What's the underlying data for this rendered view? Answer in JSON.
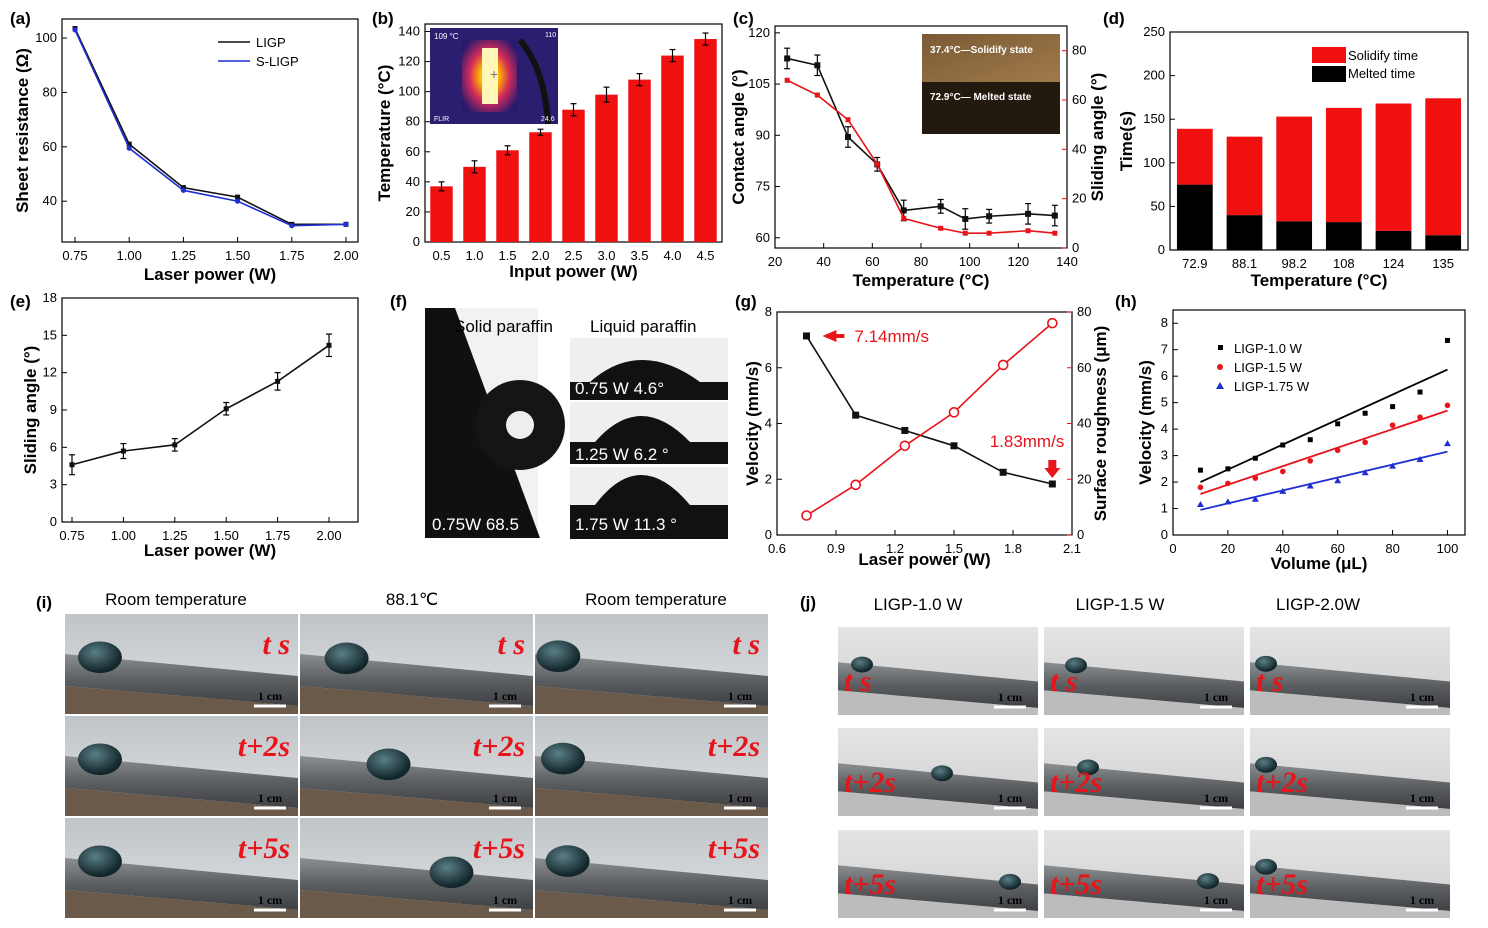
{
  "panel_labels": [
    "(a)",
    "(b)",
    "(c)",
    "(d)",
    "(e)",
    "(f)",
    "(g)",
    "(h)",
    "(i)",
    "(j)"
  ],
  "colors": {
    "black": "#111111",
    "blue": "#1f2fd0",
    "red": "#e8141a",
    "bar_red": "#f01010"
  },
  "chart_data": [
    {
      "id": "a",
      "type": "line",
      "xlabel": "Laser power (W)",
      "ylabel": "Sheet resistance (Ω)",
      "x": [
        0.75,
        1.0,
        1.25,
        1.5,
        1.75,
        2.0
      ],
      "xticks": [
        "0.75",
        "1.00",
        "1.25",
        "1.50",
        "1.75",
        "2.00"
      ],
      "ylim": [
        25,
        107
      ],
      "yticks": [
        40,
        60,
        80,
        100
      ],
      "series": [
        {
          "name": "LIGP",
          "values": [
            103.5,
            61,
            45,
            41.5,
            31.5,
            31.5
          ]
        },
        {
          "name": "S-LIGP",
          "values": [
            103,
            59.5,
            44,
            40,
            31,
            31.5
          ]
        }
      ]
    },
    {
      "id": "b",
      "type": "bar",
      "xlabel": "Input power (W)",
      "ylabel": "Temperature (°C)",
      "categories": [
        "0.5",
        "1.0",
        "1.5",
        "2.0",
        "2.5",
        "3.0",
        "3.5",
        "4.0",
        "4.5"
      ],
      "values": [
        37,
        50,
        61,
        73,
        88,
        98,
        108,
        124,
        135
      ],
      "errors": [
        3,
        4,
        3,
        2,
        4,
        5,
        4,
        4,
        4
      ],
      "ylim": [
        0,
        145
      ],
      "yticks": [
        0,
        20,
        40,
        60,
        80,
        100,
        120,
        140
      ],
      "inset_texts": {
        "temp": "109 °C",
        "max": "110",
        "min": "24.6",
        "brand": "FLIR"
      }
    },
    {
      "id": "c",
      "type": "line",
      "xlabel": "Temperature (°C)",
      "ylabel": "Contact angle (°)",
      "y2label": "Sliding angle (°)",
      "xlim": [
        20,
        140
      ],
      "xticks": [
        20,
        40,
        60,
        80,
        100,
        120,
        140
      ],
      "ylim": [
        57,
        122
      ],
      "yticks": [
        60,
        75,
        90,
        105,
        120
      ],
      "y2lim": [
        0,
        90
      ],
      "y2ticks": [
        0,
        20,
        40,
        60,
        80
      ],
      "series": [
        {
          "name": "Contact angle",
          "axis": "left",
          "x": [
            25,
            37.4,
            50,
            62,
            72.9,
            88.1,
            98.2,
            108,
            124,
            135
          ],
          "values": [
            112.5,
            110.5,
            89.5,
            81.5,
            68,
            69.2,
            65.5,
            66.3,
            67,
            66.5
          ],
          "errors": [
            3,
            3,
            3,
            2,
            3,
            2,
            3,
            2,
            3,
            3
          ]
        },
        {
          "name": "Sliding angle",
          "axis": "right",
          "x": [
            25,
            37.4,
            50,
            62,
            72.9,
            88.1,
            98.2,
            108,
            124,
            135
          ],
          "values": [
            68,
            62,
            52,
            34,
            12,
            8,
            6,
            6,
            7,
            6
          ]
        }
      ],
      "inset_texts": {
        "top": "37.4°C—Solidify state",
        "bottom": "72.9°C— Melted state"
      }
    },
    {
      "id": "d",
      "type": "bar",
      "xlabel": "Temperature (°C)",
      "ylabel": "Time(s)",
      "categories": [
        "72.9",
        "88.1",
        "98.2",
        "108",
        "124",
        "135"
      ],
      "ylim": [
        0,
        250
      ],
      "yticks": [
        0,
        50,
        100,
        150,
        200,
        250
      ],
      "series": [
        {
          "name": "Melted time",
          "values": [
            75,
            40,
            33,
            32,
            22,
            17
          ]
        },
        {
          "name": "Solidify time",
          "values": [
            64,
            90,
            120,
            131,
            146,
            157
          ]
        }
      ],
      "legend": [
        "Solidify time",
        "Melted time"
      ]
    },
    {
      "id": "e",
      "type": "line",
      "xlabel": "Laser power (W)",
      "ylabel": "Sliding angle (°)",
      "x": [
        0.75,
        1.0,
        1.25,
        1.5,
        1.75,
        2.0
      ],
      "xticks": [
        "0.75",
        "1.00",
        "1.25",
        "1.50",
        "1.75",
        "2.00"
      ],
      "values": [
        4.6,
        5.7,
        6.2,
        9.1,
        11.3,
        14.2
      ],
      "errors": [
        0.8,
        0.6,
        0.5,
        0.5,
        0.7,
        0.9
      ],
      "ylim": [
        0,
        18
      ],
      "yticks": [
        0,
        3,
        6,
        9,
        12,
        15,
        18
      ]
    },
    {
      "id": "g",
      "type": "line",
      "xlabel": "Laser power (W)",
      "ylabel": "Velocity (mm/s)",
      "y2label": "Surface roughness (μm)",
      "x": [
        0.75,
        1.0,
        1.25,
        1.5,
        1.75,
        2.0
      ],
      "xlim": [
        0.6,
        2.1
      ],
      "xticks": [
        "0.6",
        "0.9",
        "1.2",
        "1.5",
        "1.8",
        "2.1"
      ],
      "ylim": [
        0,
        8
      ],
      "yticks": [
        0,
        2,
        4,
        6,
        8
      ],
      "y2lim": [
        0,
        80
      ],
      "y2ticks": [
        0,
        20,
        40,
        60,
        80
      ],
      "series": [
        {
          "name": "Velocity",
          "axis": "left",
          "values": [
            7.14,
            4.3,
            3.75,
            3.2,
            2.25,
            1.83
          ]
        },
        {
          "name": "Surface roughness",
          "axis": "right",
          "values": [
            7,
            18,
            32,
            44,
            61,
            76
          ]
        }
      ],
      "annotations": [
        "7.14mm/s",
        "1.83mm/s"
      ]
    },
    {
      "id": "h",
      "type": "scatter",
      "xlabel": "Volume (μL)",
      "ylabel": "Velocity (mm/s)",
      "x": [
        10,
        20,
        30,
        40,
        50,
        60,
        70,
        80,
        90,
        100
      ],
      "xlim": [
        0,
        100
      ],
      "xticks": [
        0,
        20,
        40,
        60,
        80,
        100
      ],
      "ylim": [
        0,
        8.5
      ],
      "yticks": [
        0,
        1,
        2,
        3,
        4,
        5,
        6,
        7,
        8
      ],
      "series": [
        {
          "name": "LIGP-1.0 W",
          "values": [
            2.45,
            2.5,
            2.9,
            3.4,
            3.6,
            4.2,
            4.6,
            4.85,
            5.4,
            7.35
          ],
          "fit": [
            2.0,
            6.25
          ]
        },
        {
          "name": "LIGP-1.5 W",
          "values": [
            1.8,
            1.95,
            2.15,
            2.4,
            2.8,
            3.2,
            3.5,
            4.15,
            4.45,
            4.9
          ],
          "fit": [
            1.55,
            4.7
          ]
        },
        {
          "name": "LIGP-1.75 W",
          "values": [
            1.15,
            1.25,
            1.35,
            1.65,
            1.85,
            2.05,
            2.35,
            2.6,
            2.85,
            3.45
          ],
          "fit": [
            0.95,
            3.15
          ]
        }
      ]
    }
  ],
  "panel_f": {
    "solid": "Solid paraffin",
    "liquid": "Liquid paraffin",
    "big_label": "0.75W 68.5",
    "drops": [
      "0.75 W 4.6°",
      "1.25 W 6.2 °",
      "1.75 W 11.3 °"
    ]
  },
  "panel_i": {
    "columns": [
      "Room temperature",
      "88.1℃",
      "Room temperature"
    ],
    "rows": [
      "t s",
      "t+2s",
      "t+5s"
    ],
    "scale": "1 cm"
  },
  "panel_j": {
    "columns": [
      "LIGP-1.0 W",
      "LIGP-1.5 W",
      "LIGP-2.0W"
    ],
    "rows": [
      "t s",
      "t+2s",
      "t+5s"
    ],
    "scale": "1 cm"
  }
}
